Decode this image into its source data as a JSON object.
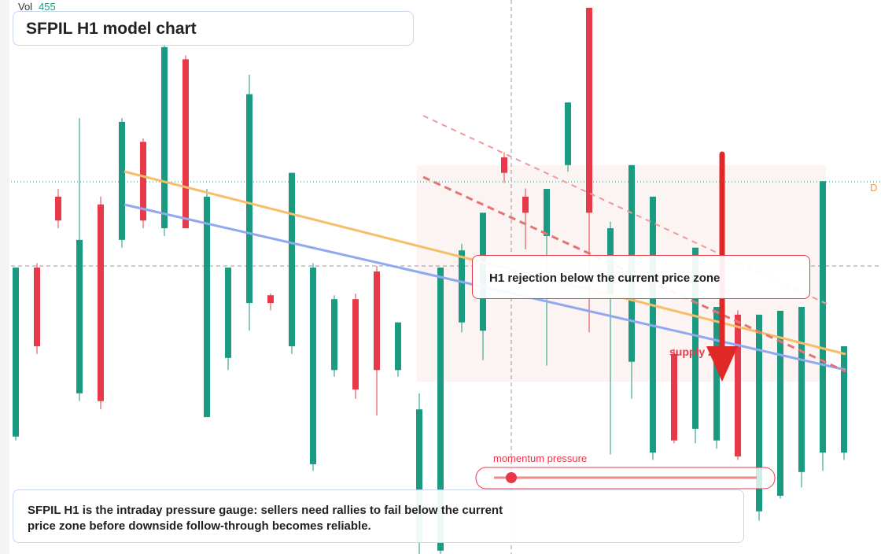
{
  "chart_data": {
    "type": "candlestick",
    "title": "SFPIL H1 model chart",
    "volume_label": "Vol",
    "volume_value": "455",
    "last_price_tag": "D",
    "ylim": [
      0,
      100
    ],
    "up_color": "#1a9a80",
    "down_color": "#e8394a",
    "candles": [
      [
        21.2,
        51.7,
        20.5,
        51.7
      ],
      [
        51.7,
        52.5,
        36.1,
        37.5
      ],
      [
        64.5,
        65.9,
        58.8,
        60.2
      ],
      [
        29.0,
        78.7,
        27.6,
        56.7
      ],
      [
        63.1,
        64.5,
        26.1,
        27.6
      ],
      [
        56.7,
        78.7,
        55.3,
        78.0
      ],
      [
        74.4,
        75.0,
        58.8,
        60.2
      ],
      [
        58.8,
        92.2,
        57.4,
        91.5
      ],
      [
        89.3,
        90.0,
        58.8,
        58.8
      ],
      [
        24.7,
        65.9,
        24.7,
        64.5
      ],
      [
        35.4,
        51.7,
        33.2,
        51.7
      ],
      [
        45.3,
        86.5,
        40.3,
        83.0
      ],
      [
        46.7,
        47.0,
        44.0,
        45.3
      ],
      [
        37.5,
        68.8,
        36.1,
        68.8
      ],
      [
        16.2,
        52.5,
        15.0,
        51.7
      ],
      [
        33.2,
        46.7,
        32.0,
        46.0
      ],
      [
        46.0,
        47.0,
        28.0,
        29.7
      ],
      [
        51.0,
        52.0,
        25.0,
        33.2
      ],
      [
        33.2,
        41.8,
        32.0,
        41.8
      ],
      [
        2.0,
        29.0,
        0,
        26.1
      ],
      [
        0.6,
        51.7,
        0,
        51.7
      ],
      [
        41.8,
        56.0,
        40.0,
        54.8
      ],
      [
        40.3,
        61.6,
        35.0,
        61.6
      ],
      [
        71.6,
        72.5,
        67.0,
        68.8
      ],
      [
        64.5,
        66.0,
        55.0,
        61.6
      ],
      [
        57.4,
        65.9,
        34.0,
        65.9
      ],
      [
        70.2,
        81.5,
        69.0,
        81.5
      ],
      [
        98.6,
        98.6,
        40.0,
        61.6
      ],
      [
        47.0,
        60.0,
        18.0,
        58.8
      ],
      [
        34.7,
        70.2,
        28.0,
        70.2
      ],
      [
        18.3,
        64.5,
        17.0,
        64.5
      ],
      [
        36.1,
        37.0,
        20.0,
        20.5
      ],
      [
        22.6,
        55.3,
        20.0,
        55.3
      ],
      [
        20.5,
        44.6,
        19.0,
        44.6
      ],
      [
        43.2,
        44.0,
        17.0,
        17.6
      ],
      [
        7.7,
        43.2,
        6.0,
        43.2
      ],
      [
        10.5,
        43.9,
        10.0,
        43.9
      ],
      [
        14.8,
        44.6,
        12.0,
        44.6
      ],
      [
        18.3,
        67.3,
        15.0,
        67.3
      ],
      [
        18.3,
        37.5,
        17.0,
        37.5
      ]
    ],
    "annotations": {
      "rejection": "H1 rejection below the current price zone",
      "zone": "supply zone",
      "momentum": "momentum pressure"
    },
    "footer": "SFPIL H1 is the intraday pressure gauge: sellers need rallies to fail below the current price zone before downside follow-through becomes reliable."
  }
}
